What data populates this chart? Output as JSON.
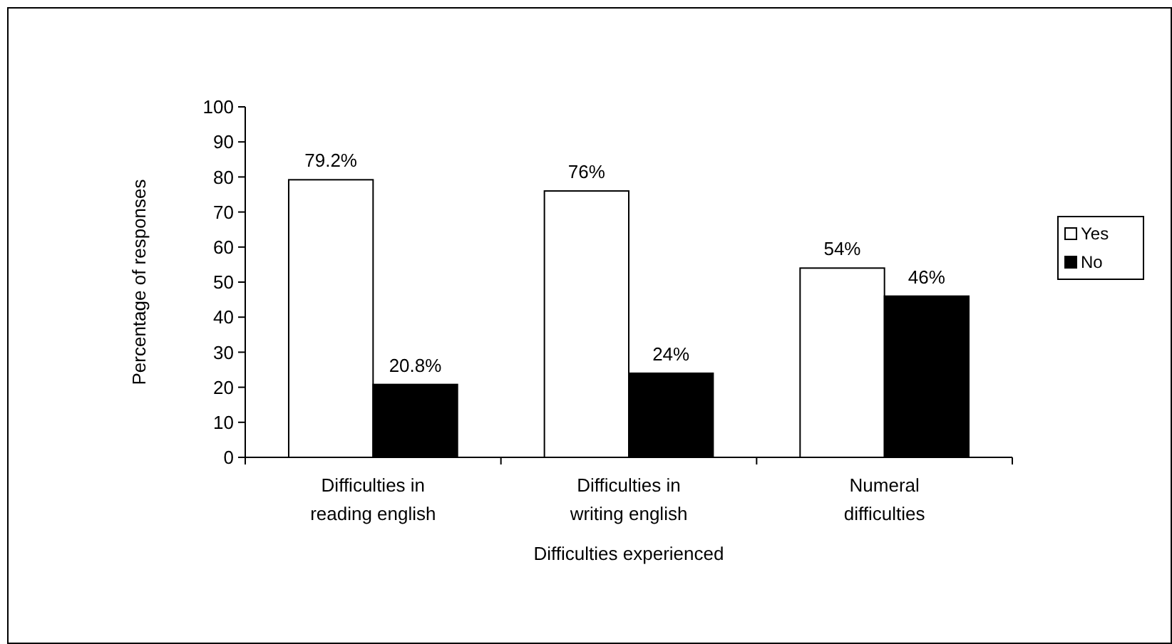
{
  "chart_data": {
    "type": "bar",
    "xlabel": "Difficulties experienced",
    "ylabel": "Percentage of responses",
    "categories": [
      "Difficulties in reading english",
      "Difficulties in writing english",
      "Numeral difficulties"
    ],
    "series": [
      {
        "name": "Yes",
        "color": "#ffffff",
        "values": [
          79.2,
          76,
          54
        ],
        "value_labels": [
          "79.2%",
          "76%",
          "54%"
        ]
      },
      {
        "name": "No",
        "color": "#000000",
        "values": [
          20.8,
          24,
          46
        ],
        "value_labels": [
          "20.8%",
          "24%",
          "46%"
        ]
      }
    ],
    "ylim": [
      0,
      100
    ],
    "yticks": [
      0,
      10,
      20,
      30,
      40,
      50,
      60,
      70,
      80,
      90,
      100
    ],
    "grid": false,
    "legend": "right"
  }
}
